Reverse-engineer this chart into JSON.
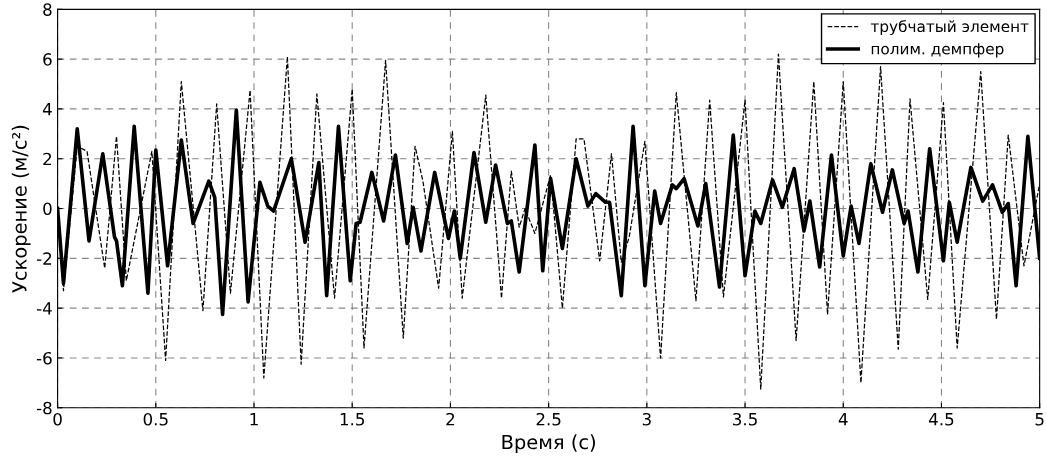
{
  "chart_data": {
    "type": "line",
    "xlabel": "Время (с)",
    "ylabel": "Ускорение (м/с²)",
    "xlim": [
      0,
      5
    ],
    "xticks": [
      0,
      0.5,
      1,
      1.5,
      2,
      2.5,
      3,
      3.5,
      4,
      4.5,
      5
    ],
    "ylim": [
      -8,
      8
    ],
    "yticks": [
      -8,
      -6,
      -4,
      -2,
      0,
      2,
      4,
      6,
      8
    ],
    "grid": true,
    "legend": "top right",
    "marker": "none",
    "series": [
      {
        "name": "трубчатый элемент",
        "color": "#000000",
        "line_style": "dashed",
        "x": [
          0,
          0.03,
          0.1,
          0.15,
          0.24,
          0.3,
          0.35,
          0.48,
          0.55,
          0.63,
          0.74,
          0.81,
          0.88,
          0.98,
          1.05,
          1.17,
          1.24,
          1.32,
          1.41,
          1.5,
          1.56,
          1.67,
          1.76,
          1.82,
          1.86,
          1.94,
          2.01,
          2.06,
          2.18,
          2.26,
          2.31,
          2.35,
          2.38,
          2.43,
          2.51,
          2.57,
          2.64,
          2.68,
          2.76,
          2.82,
          2.87,
          2.91,
          2.99,
          3.07,
          3.15,
          3.25,
          3.32,
          3.39,
          3.5,
          3.58,
          3.67,
          3.76,
          3.85,
          3.92,
          4.0,
          4.09,
          4.19,
          4.28,
          4.34,
          4.43,
          4.51,
          4.58,
          4.7,
          4.78,
          4.84,
          4.92,
          5.0
        ],
        "values": [
          0,
          -3.3,
          2.5,
          2.3,
          -2.4,
          2.9,
          -2.9,
          2.3,
          -6.1,
          5.1,
          -4.1,
          4.2,
          -3.4,
          4.75,
          -6.8,
          6.1,
          -6.25,
          4.6,
          -3.6,
          4.8,
          -5.6,
          5.95,
          -5.2,
          2.5,
          1.1,
          -3.2,
          3.1,
          -3.6,
          4.55,
          -3.6,
          1.5,
          -0.75,
          0,
          -1.0,
          1.35,
          -4.0,
          2.8,
          2.8,
          -2.1,
          2.2,
          -2.15,
          -1.15,
          2.7,
          -6.0,
          4.65,
          -3.7,
          4.35,
          -3.55,
          4.35,
          -7.25,
          6.2,
          -5.3,
          5.1,
          -4.25,
          5.1,
          -7.0,
          5.7,
          -5.65,
          4.4,
          -3.65,
          4.25,
          -5.6,
          5.5,
          -4.45,
          2.95,
          -2.3,
          1.0
        ]
      },
      {
        "name": "полим. демпфер",
        "color": "#000000",
        "line_style": "solid",
        "x": [
          0,
          0.03,
          0.1,
          0.16,
          0.23,
          0.29,
          0.3,
          0.33,
          0.39,
          0.46,
          0.5,
          0.56,
          0.63,
          0.69,
          0.77,
          0.8,
          0.84,
          0.91,
          0.97,
          1.03,
          1.07,
          1.1,
          1.19,
          1.26,
          1.33,
          1.37,
          1.43,
          1.49,
          1.52,
          1.54,
          1.6,
          1.66,
          1.72,
          1.78,
          1.81,
          1.85,
          1.92,
          1.99,
          2.02,
          2.05,
          2.12,
          2.18,
          2.23,
          2.29,
          2.31,
          2.35,
          2.43,
          2.47,
          2.51,
          2.57,
          2.64,
          2.7,
          2.74,
          2.79,
          2.81,
          2.87,
          2.93,
          2.99,
          3.04,
          3.07,
          3.13,
          3.15,
          3.19,
          3.26,
          3.3,
          3.37,
          3.44,
          3.5,
          3.55,
          3.58,
          3.64,
          3.69,
          3.75,
          3.8,
          3.83,
          3.88,
          3.94,
          4.0,
          4.04,
          4.08,
          4.14,
          4.2,
          4.25,
          4.31,
          4.33,
          4.38,
          4.44,
          4.51,
          4.54,
          4.58,
          4.65,
          4.71,
          4.76,
          4.81,
          4.84,
          4.88,
          4.94,
          5.0
        ],
        "values": [
          0,
          -3.0,
          3.2,
          -1.3,
          2.2,
          -1.15,
          -1.3,
          -3.1,
          3.3,
          -3.4,
          2.35,
          -2.3,
          2.75,
          -0.6,
          1.1,
          0.45,
          -4.25,
          3.95,
          -3.75,
          1.05,
          0.1,
          -0.1,
          2.0,
          -1.35,
          1.85,
          -3.5,
          3.3,
          -2.9,
          -0.6,
          -0.55,
          1.45,
          -0.5,
          2.15,
          -1.4,
          0.05,
          -1.7,
          1.45,
          -1.2,
          -0.1,
          -2.0,
          2.25,
          -0.55,
          1.75,
          -0.6,
          -0.5,
          -2.55,
          2.55,
          -2.5,
          1.2,
          -1.6,
          2.0,
          0.1,
          0.6,
          0.25,
          0.25,
          -3.5,
          3.3,
          -3.1,
          0.7,
          -0.6,
          0.95,
          0.8,
          1.2,
          -0.7,
          1.0,
          -3.15,
          2.95,
          -2.7,
          -0.1,
          -0.6,
          1.15,
          0.05,
          1.6,
          -0.9,
          0.3,
          -2.35,
          2.15,
          -1.9,
          0.1,
          -1.4,
          1.8,
          -0.15,
          1.55,
          -0.6,
          -0.1,
          -2.55,
          2.4,
          -2.1,
          0.25,
          -1.35,
          1.65,
          0.3,
          0.95,
          -0.15,
          0.2,
          -3.1,
          2.9,
          -2.0
        ]
      }
    ]
  }
}
